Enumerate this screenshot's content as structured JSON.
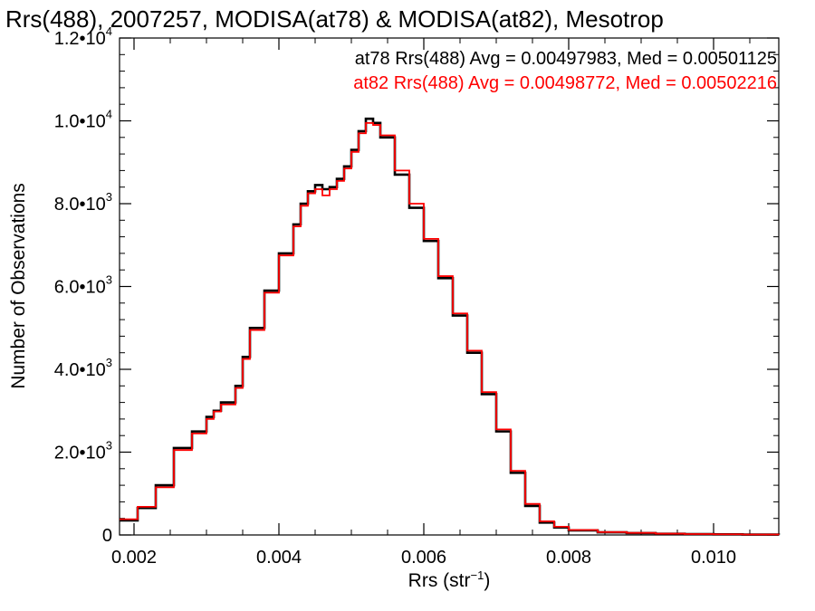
{
  "chart_data": {
    "type": "line",
    "step": true,
    "title": "Rrs(488), 2007257, MODISA(at78) & MODISA(at82), Mesotrop",
    "xlabel": {
      "base": "Rrs (str",
      "sup": "−1",
      "end": ")"
    },
    "ylabel": "Number of Observations",
    "xlim": [
      0.0018,
      0.0109
    ],
    "ylim": [
      0,
      12000
    ],
    "x_ticks": [
      {
        "value": 0.002,
        "label": "0.002"
      },
      {
        "value": 0.004,
        "label": "0.004"
      },
      {
        "value": 0.006,
        "label": "0.006"
      },
      {
        "value": 0.008,
        "label": "0.008"
      },
      {
        "value": 0.01,
        "label": "0.010"
      }
    ],
    "x_minor_step": 0.0005,
    "y_ticks": [
      {
        "value": 0,
        "mant": "0",
        "exp": ""
      },
      {
        "value": 2000,
        "mant": "2.0•10",
        "exp": "3"
      },
      {
        "value": 4000,
        "mant": "4.0•10",
        "exp": "3"
      },
      {
        "value": 6000,
        "mant": "6.0•10",
        "exp": "3"
      },
      {
        "value": 8000,
        "mant": "8.0•10",
        "exp": "3"
      },
      {
        "value": 10000,
        "mant": "1.0•10",
        "exp": "4"
      },
      {
        "value": 12000,
        "mant": "1.2•10",
        "exp": "4"
      }
    ],
    "y_minor_step": 400,
    "grid": false,
    "legend_position": "top-right",
    "series": [
      {
        "name": "at78 Rrs(488) Avg = 0.00497983, Med = 0.00501125",
        "color": "#000000",
        "x": [
          0.0018,
          0.00205,
          0.0023,
          0.00255,
          0.0028,
          0.003,
          0.0031,
          0.0032,
          0.0034,
          0.0035,
          0.0036,
          0.0038,
          0.004,
          0.0042,
          0.0043,
          0.0044,
          0.0045,
          0.0046,
          0.0047,
          0.0048,
          0.0049,
          0.005,
          0.0051,
          0.0052,
          0.0053,
          0.0054,
          0.0056,
          0.0058,
          0.006,
          0.0062,
          0.0064,
          0.0066,
          0.0068,
          0.007,
          0.0072,
          0.0074,
          0.0076,
          0.0078,
          0.008,
          0.0084,
          0.0088,
          0.0092,
          0.0096,
          0.01,
          0.0104,
          0.0109
        ],
        "values": [
          350,
          650,
          1200,
          2100,
          2500,
          2850,
          3000,
          3200,
          3600,
          4300,
          5000,
          5900,
          6800,
          7500,
          8000,
          8300,
          8450,
          8350,
          8400,
          8600,
          8900,
          9300,
          9750,
          10050,
          9950,
          9600,
          8700,
          7900,
          7100,
          6200,
          5300,
          4400,
          3400,
          2500,
          1500,
          700,
          300,
          180,
          110,
          65,
          45,
          30,
          20,
          15,
          10,
          8
        ]
      },
      {
        "name": "at82 Rrs(488) Avg = 0.00498772, Med = 0.00502216",
        "color": "#ff0000",
        "x": [
          0.0018,
          0.00205,
          0.0023,
          0.00255,
          0.0028,
          0.003,
          0.0031,
          0.0032,
          0.0034,
          0.0035,
          0.0036,
          0.0038,
          0.004,
          0.0042,
          0.0043,
          0.0044,
          0.0045,
          0.0046,
          0.0047,
          0.0048,
          0.0049,
          0.005,
          0.0051,
          0.0052,
          0.0053,
          0.0054,
          0.0056,
          0.0058,
          0.006,
          0.0062,
          0.0064,
          0.0066,
          0.0068,
          0.007,
          0.0072,
          0.0074,
          0.0076,
          0.0078,
          0.008,
          0.0084,
          0.0088,
          0.0092,
          0.0096,
          0.01,
          0.0104,
          0.0109
        ],
        "values": [
          380,
          680,
          1150,
          2050,
          2450,
          2800,
          2980,
          3150,
          3550,
          4250,
          4950,
          5850,
          6750,
          7450,
          7950,
          8250,
          8350,
          8200,
          8350,
          8550,
          8850,
          9250,
          9700,
          9950,
          9900,
          9650,
          8800,
          8000,
          7150,
          6250,
          5350,
          4450,
          3450,
          2550,
          1550,
          750,
          330,
          200,
          120,
          70,
          50,
          32,
          22,
          16,
          11,
          9
        ]
      }
    ]
  }
}
